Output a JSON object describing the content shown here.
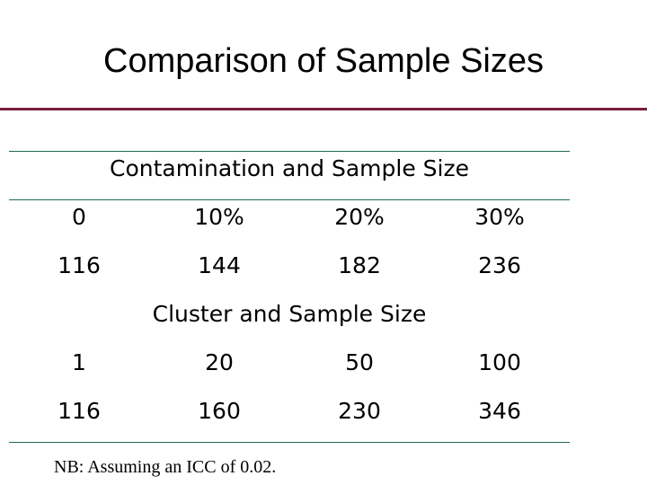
{
  "title": "Comparison of Sample Sizes",
  "tables": [
    {
      "header": "Contamination and Sample Size",
      "row_labels": [
        "0",
        "10%",
        "20%",
        "30%"
      ],
      "row_values": [
        "116",
        "144",
        "182",
        "236"
      ]
    },
    {
      "header": "Cluster and Sample Size",
      "row_labels": [
        "1",
        "20",
        "50",
        "100"
      ],
      "row_values": [
        "116",
        "160",
        "230",
        "346"
      ]
    }
  ],
  "footnote": "NB: Assuming an ICC of 0.02.",
  "colors": {
    "title_rule": "#7a1f3d",
    "table_rule": "#1e6b4d"
  }
}
